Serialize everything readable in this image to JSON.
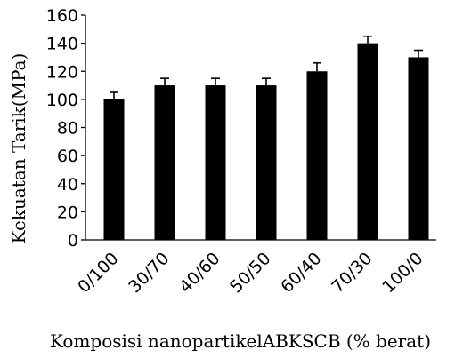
{
  "chart_data": {
    "type": "bar",
    "categories": [
      "0/100",
      "30/70",
      "40/60",
      "50/50",
      "60/40",
      "70/30",
      "100/0"
    ],
    "values": [
      100,
      110,
      110,
      110,
      120,
      140,
      130
    ],
    "errors": [
      5,
      5,
      5,
      5,
      6,
      5,
      5
    ],
    "title": "",
    "xlabel": "Komposisi  nanopartikelABKSCB (% berat)",
    "ylabel": "Kekuatan Tarik(MPa)",
    "ylim": [
      0,
      160
    ],
    "yticks": [
      0,
      20,
      40,
      60,
      80,
      100,
      120,
      140,
      160
    ],
    "grid": false,
    "bar_color": "#000000"
  }
}
